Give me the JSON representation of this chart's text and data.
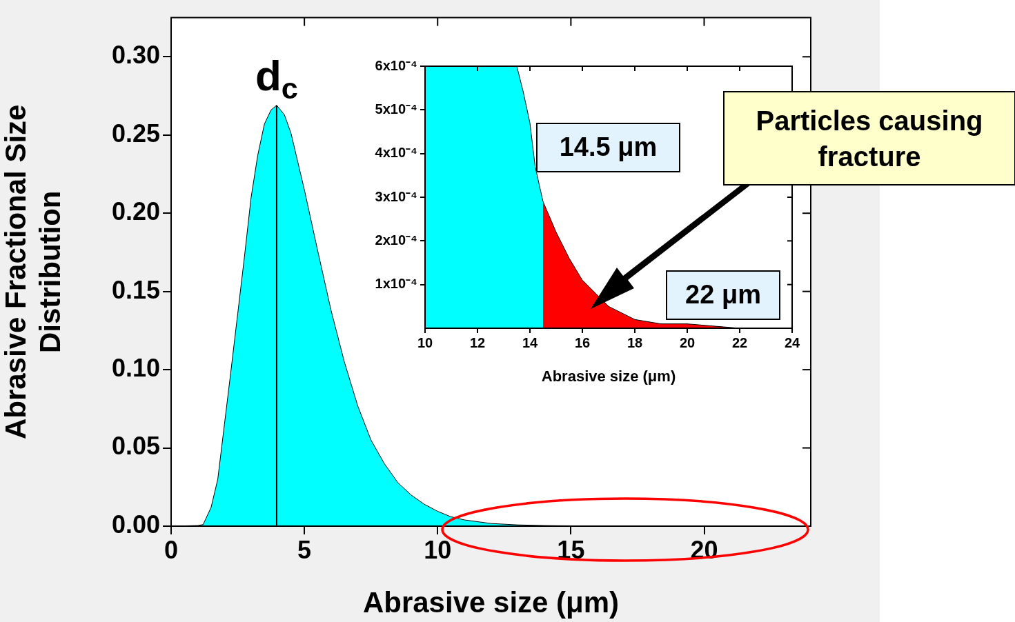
{
  "chart_data": [
    {
      "type": "area",
      "xlabel": "Abrasive size (μm)",
      "ylabel": "Abrasive Fractional Size Distribution",
      "xlim": [
        0,
        24
      ],
      "ylim": [
        0,
        0.325
      ],
      "xticks": [
        0,
        5,
        10,
        15,
        20
      ],
      "yticks": [
        {
          "value": 0,
          "label": "0.00"
        },
        {
          "value": 0.05,
          "label": "0.05"
        },
        {
          "value": 0.1,
          "label": "0.10"
        },
        {
          "value": 0.15,
          "label": "0.15"
        },
        {
          "value": 0.2,
          "label": "0.20"
        },
        {
          "value": 0.25,
          "label": "0.25"
        },
        {
          "value": 0.3,
          "label": "0.30"
        }
      ],
      "marker": "none",
      "series": [
        {
          "color": "#00ffff",
          "x": [
            0,
            1,
            1.2,
            1.5,
            1.75,
            2,
            2.25,
            2.5,
            2.75,
            3,
            3.25,
            3.5,
            3.75,
            3.96,
            4.25,
            4.5,
            5,
            5.5,
            6,
            6.5,
            7,
            7.5,
            8,
            8.5,
            9,
            9.5,
            10,
            10.5,
            11,
            12,
            13,
            14,
            14.5
          ],
          "values": [
            0,
            0.0004,
            0.001,
            0.012,
            0.03,
            0.065,
            0.1,
            0.136,
            0.172,
            0.21,
            0.237,
            0.257,
            0.266,
            0.269,
            0.263,
            0.251,
            0.215,
            0.176,
            0.138,
            0.105,
            0.077,
            0.055,
            0.04,
            0.028,
            0.02,
            0.014,
            0.0095,
            0.006,
            0.004,
            0.0017,
            0.0008,
            0.0004,
            0.0003
          ]
        },
        {
          "color": "#ff0000",
          "x": [
            14.5,
            16,
            18,
            20,
            22,
            24
          ],
          "values": [
            0.0003,
            0.0001,
            0,
            0,
            0,
            0
          ]
        }
      ],
      "ref_lines": [
        {
          "axis": "x",
          "value": 3.96,
          "label": "d$_{c}$"
        }
      ]
    },
    {
      "type": "area",
      "xlabel": "Abrasive size (μm)",
      "xlim": [
        10,
        24
      ],
      "ylim": [
        0,
        0.0006
      ],
      "xticks": [
        10,
        12,
        14,
        16,
        18,
        20,
        22,
        24
      ],
      "yticks": [
        {
          "value": 0.0001,
          "label": "1x10⁻⁴"
        },
        {
          "value": 0.0002,
          "label": "2x10⁻⁴"
        },
        {
          "value": 0.0003,
          "label": "3x10⁻⁴"
        },
        {
          "value": 0.0004,
          "label": "4x10⁻⁴"
        },
        {
          "value": 0.0005,
          "label": "5x10⁻⁴"
        },
        {
          "value": 0.0006,
          "label": "6x10⁻⁴"
        }
      ],
      "marker": "none",
      "series": [
        {
          "color": "#00ffff",
          "x": [
            13.5,
            13.75,
            14,
            14.2,
            14.5
          ],
          "values": [
            0.0006,
            0.00054,
            0.00047,
            0.00037,
            0.00029
          ]
        },
        {
          "color": "#ff0000",
          "x": [
            14.5,
            15,
            15.5,
            16,
            16.5,
            17,
            18,
            19,
            20,
            22,
            22.6
          ],
          "values": [
            0.00029,
            0.00022,
            0.00016,
            0.00011,
            8e-05,
            5e-05,
            2e-05,
            1e-05,
            1e-05,
            0,
            0
          ]
        }
      ],
      "bands": [
        {
          "axis": "x",
          "from": 10,
          "to": 13.5,
          "color": "#00ffff"
        }
      ],
      "annotations": [
        "14.5 μm",
        "22 μm",
        "Particles causing fracture"
      ]
    }
  ]
}
